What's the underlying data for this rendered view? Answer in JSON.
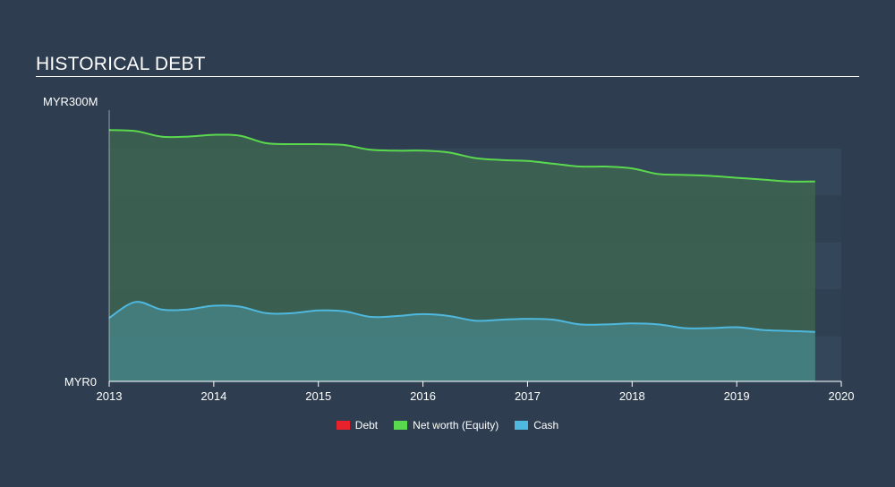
{
  "title": "HISTORICAL DEBT",
  "colors": {
    "background": "#2e3d4f",
    "debt": "#e8222a",
    "net_worth": "#5bd94e",
    "cash": "#4fb8de"
  },
  "chart_data": {
    "type": "area",
    "title": "HISTORICAL DEBT",
    "xlabel": "",
    "ylabel": "",
    "x_ticks": [
      "2013",
      "2014",
      "2015",
      "2016",
      "2017",
      "2018",
      "2019",
      "2020"
    ],
    "xlim": [
      2013,
      2020
    ],
    "ylim": [
      0,
      300
    ],
    "y_tick_labels": [
      "MYR0",
      "MYR300M"
    ],
    "grid": false,
    "legend_position": "bottom-center",
    "series": [
      {
        "name": "Debt",
        "color": "#e8222a",
        "x": [
          2013.0,
          2019.75
        ],
        "y": [
          0,
          0
        ]
      },
      {
        "name": "Net worth (Equity)",
        "color": "#5bd94e",
        "x": [
          2013.0,
          2013.25,
          2013.5,
          2013.75,
          2014.0,
          2014.25,
          2014.5,
          2014.75,
          2015.0,
          2015.25,
          2015.5,
          2015.75,
          2016.0,
          2016.25,
          2016.5,
          2016.75,
          2017.0,
          2017.25,
          2017.5,
          2017.75,
          2018.0,
          2018.25,
          2018.5,
          2018.75,
          2019.0,
          2019.25,
          2019.5,
          2019.75
        ],
        "y": [
          269,
          268,
          262,
          262,
          264,
          263,
          255,
          254,
          254,
          253,
          248,
          247,
          247,
          245,
          239,
          237,
          236,
          233,
          230,
          230,
          228,
          222,
          221,
          220,
          218,
          216,
          214,
          214
        ]
      },
      {
        "name": "Cash",
        "color": "#4fb8de",
        "x": [
          2013.0,
          2013.25,
          2013.5,
          2013.75,
          2014.0,
          2014.25,
          2014.5,
          2014.75,
          2015.0,
          2015.25,
          2015.5,
          2015.75,
          2016.0,
          2016.25,
          2016.5,
          2016.75,
          2017.0,
          2017.25,
          2017.5,
          2017.75,
          2018.0,
          2018.25,
          2018.5,
          2018.75,
          2019.0,
          2019.25,
          2019.5,
          2019.75
        ],
        "y": [
          68,
          85,
          77,
          77,
          81,
          80,
          73,
          73,
          76,
          75,
          69,
          70,
          72,
          70,
          65,
          66,
          67,
          66,
          61,
          61,
          62,
          61,
          57,
          57,
          58,
          55,
          54,
          53
        ]
      }
    ]
  },
  "legend": [
    {
      "label": "Debt",
      "color": "#e8222a"
    },
    {
      "label": "Net worth (Equity)",
      "color": "#5bd94e"
    },
    {
      "label": "Cash",
      "color": "#4fb8de"
    }
  ]
}
